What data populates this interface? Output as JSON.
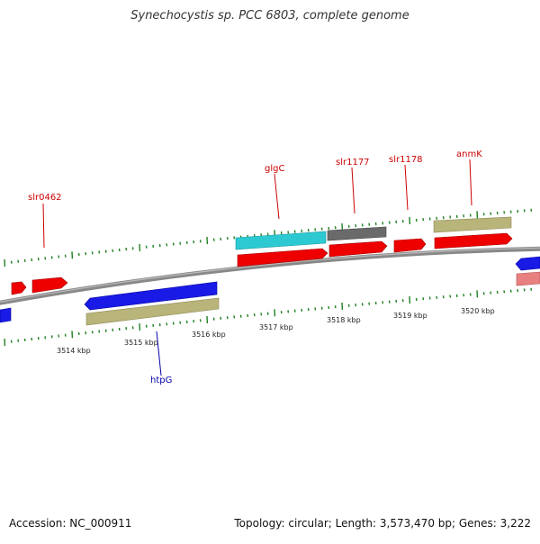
{
  "title": "Synechocystis sp. PCC 6803, complete genome",
  "footer": {
    "accession": "Accession: NC_000911",
    "summary": "Topology: circular; Length: 3,573,470 bp; Genes: 3,222"
  },
  "colors": {
    "red": "#ee0000",
    "blue": "#1a1ae6",
    "cyan": "#2cc9d2",
    "gray": "#6a6a6a",
    "khaki": "#b8b47a",
    "pink": "#e88080",
    "backbone": "#888888",
    "tick": "#208020",
    "gene_label_red": "#cc0000",
    "gene_label_blue": "#0000aa"
  },
  "scale_labels": [
    "3514 kbp",
    "3515 kbp",
    "3516 kbp",
    "3517 kbp",
    "3518 kbp",
    "3519 kbp",
    "3520 kbp"
  ],
  "gene_labels": [
    {
      "name": "slr0462",
      "color": "red"
    },
    {
      "name": "glgC",
      "color": "red"
    },
    {
      "name": "slr1177",
      "color": "red"
    },
    {
      "name": "slr1178",
      "color": "red"
    },
    {
      "name": "anmK",
      "color": "red"
    },
    {
      "name": "htpG",
      "color": "blue"
    }
  ]
}
